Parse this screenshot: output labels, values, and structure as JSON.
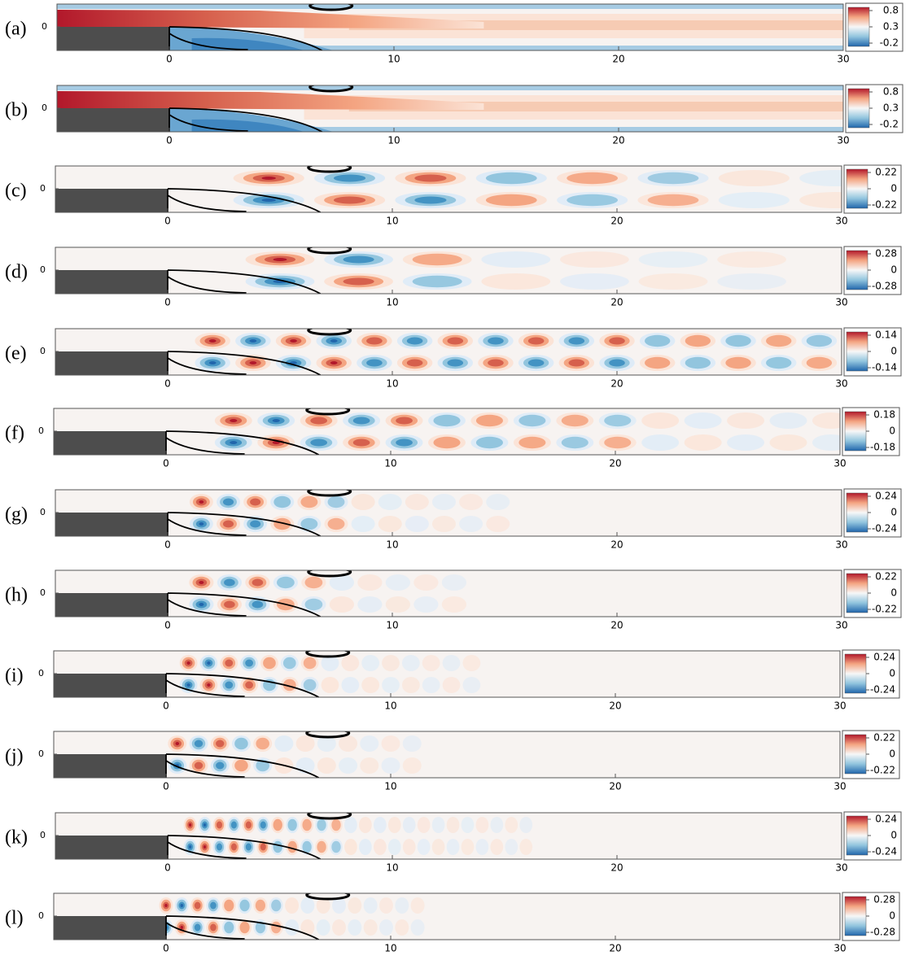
{
  "chart_data": [
    {
      "type": "contour",
      "label": "(a)",
      "xlim": [
        -5,
        30
      ],
      "xticks": [
        0,
        10,
        20,
        30
      ],
      "yticks": [
        0
      ],
      "colorbar_ticks": [
        0.8,
        0.3,
        -0.2
      ]
    },
    {
      "type": "contour",
      "label": "(b)",
      "xlim": [
        -5,
        30
      ],
      "xticks": [
        0,
        10,
        20,
        30
      ],
      "yticks": [
        0
      ],
      "colorbar_ticks": [
        0.8,
        0.3,
        -0.2
      ]
    },
    {
      "type": "contour",
      "label": "(c)",
      "xlim": [
        -5,
        30
      ],
      "xticks": [
        0,
        10,
        20,
        30
      ],
      "yticks": [
        0
      ],
      "colorbar_ticks": [
        0.22,
        0,
        -0.22
      ]
    },
    {
      "type": "contour",
      "label": "(d)",
      "xlim": [
        -5,
        30
      ],
      "xticks": [
        0,
        10,
        20,
        30
      ],
      "yticks": [
        0
      ],
      "colorbar_ticks": [
        0.28,
        0,
        -0.28
      ]
    },
    {
      "type": "contour",
      "label": "(e)",
      "xlim": [
        -5,
        30
      ],
      "xticks": [
        0,
        10,
        20,
        30
      ],
      "yticks": [
        0
      ],
      "colorbar_ticks": [
        0.14,
        0,
        -0.14
      ]
    },
    {
      "type": "contour",
      "label": "(f)",
      "xlim": [
        -5,
        30
      ],
      "xticks": [
        0,
        10,
        20,
        30
      ],
      "yticks": [
        0
      ],
      "colorbar_ticks": [
        0.18,
        0,
        -0.18
      ]
    },
    {
      "type": "contour",
      "label": "(g)",
      "xlim": [
        -5,
        30
      ],
      "xticks": [
        0,
        10,
        20,
        30
      ],
      "yticks": [
        0
      ],
      "colorbar_ticks": [
        0.24,
        0,
        -0.24
      ]
    },
    {
      "type": "contour",
      "label": "(h)",
      "xlim": [
        -5,
        30
      ],
      "xticks": [
        0,
        10,
        20,
        30
      ],
      "yticks": [
        0
      ],
      "colorbar_ticks": [
        0.22,
        0,
        -0.22
      ]
    },
    {
      "type": "contour",
      "label": "(i)",
      "xlim": [
        -5,
        30
      ],
      "xticks": [
        0,
        10,
        20,
        30
      ],
      "yticks": [
        0
      ],
      "colorbar_ticks": [
        0.24,
        0,
        -0.24
      ]
    },
    {
      "type": "contour",
      "label": "(j)",
      "xlim": [
        -5,
        30
      ],
      "xticks": [
        0,
        10,
        20,
        30
      ],
      "yticks": [
        0
      ],
      "colorbar_ticks": [
        0.22,
        0,
        -0.22
      ]
    },
    {
      "type": "contour",
      "label": "(k)",
      "xlim": [
        -5,
        30
      ],
      "xticks": [
        0,
        10,
        20,
        30
      ],
      "yticks": [
        0
      ],
      "colorbar_ticks": [
        0.24,
        0,
        -0.24
      ]
    },
    {
      "type": "contour",
      "label": "(l)",
      "xlim": [
        -5,
        30
      ],
      "xticks": [
        0,
        10,
        20,
        30
      ],
      "yticks": [
        0
      ],
      "colorbar_ticks": [
        0.28,
        0,
        -0.28
      ]
    }
  ]
}
